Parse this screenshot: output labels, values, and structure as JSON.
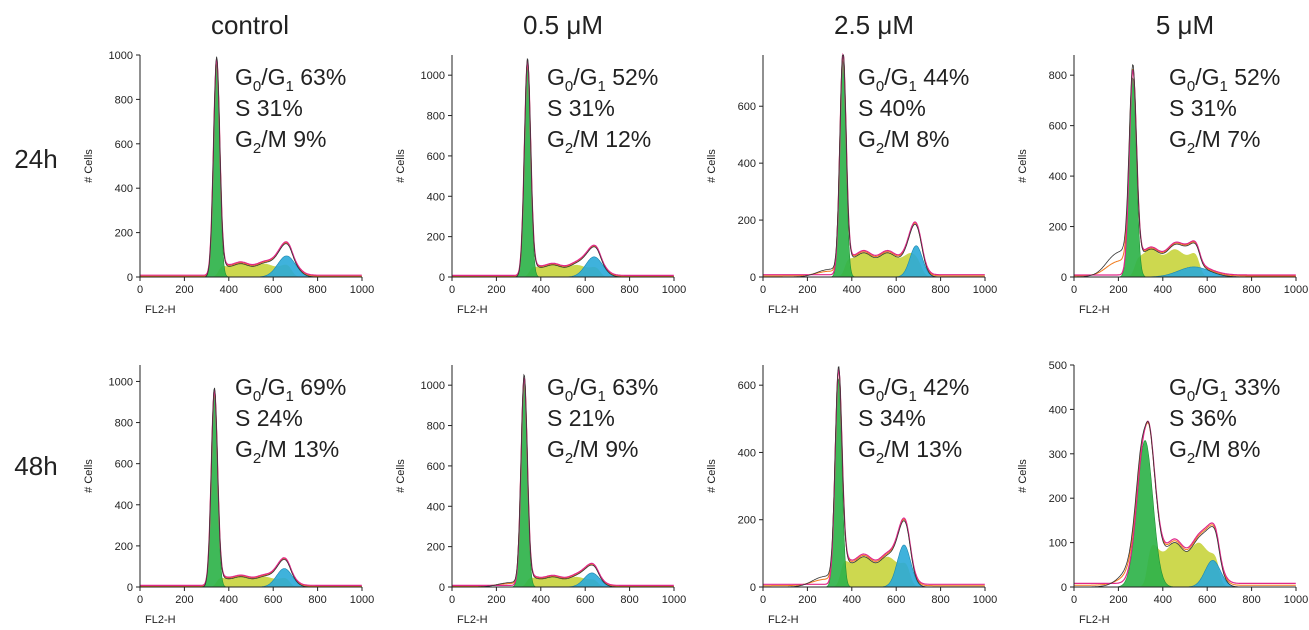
{
  "figure": {
    "column_titles": [
      "control",
      "0.5 μM",
      "2.5 μM",
      "5 μM"
    ],
    "row_titles": [
      "24h",
      "48h"
    ]
  },
  "colors": {
    "g1_fill": "#2fb34a",
    "g1_dark": "#1f8f34",
    "s_fill": "#c8d43c",
    "g2m_fill": "#2aaad8",
    "fit_line": "#e0288a",
    "fit_line2": "#f07a1a",
    "raw_line": "#333333",
    "axis": "#222222"
  },
  "chart_data": [
    {
      "type": "area",
      "row": "24h",
      "column": "control",
      "xlabel": "FL2-H",
      "ylabel": "# Cells",
      "xlim": [
        0,
        1000
      ],
      "xticks": [
        0,
        200,
        400,
        600,
        800,
        1000
      ],
      "ylim": [
        0,
        1000
      ],
      "yticks": [
        0,
        200,
        400,
        600,
        800,
        1000
      ],
      "annotation": {
        "g0g1": "63%",
        "s": "31%",
        "g2m": "9%"
      },
      "peaks": {
        "g1_pos": 345,
        "g1_height": 960,
        "g1_width": 14,
        "g2_pos": 660,
        "g2_height": 95,
        "g2_width": 40,
        "s_level": 60,
        "pre_level": 0
      }
    },
    {
      "type": "area",
      "row": "24h",
      "column": "0.5 μM",
      "xlabel": "FL2-H",
      "ylabel": "# Cells",
      "xlim": [
        0,
        1000
      ],
      "xticks": [
        0,
        200,
        400,
        600,
        800,
        1000
      ],
      "ylim": [
        0,
        1100
      ],
      "yticks": [
        0,
        200,
        400,
        600,
        800,
        1000
      ],
      "annotation": {
        "g0g1": "52%",
        "s": "31%",
        "g2m": "12%"
      },
      "peaks": {
        "g1_pos": 340,
        "g1_height": 1050,
        "g1_width": 14,
        "g2_pos": 640,
        "g2_height": 100,
        "g2_width": 38,
        "s_level": 60,
        "pre_level": 0
      }
    },
    {
      "type": "area",
      "row": "24h",
      "column": "2.5 μM",
      "xlabel": "FL2-H",
      "ylabel": "# Cells",
      "xlim": [
        0,
        1000
      ],
      "xticks": [
        0,
        200,
        400,
        600,
        800,
        1000
      ],
      "ylim": [
        0,
        780
      ],
      "yticks": [
        0,
        200,
        400,
        600
      ],
      "annotation": {
        "g0g1": "44%",
        "s": "40%",
        "g2m": "8%"
      },
      "peaks": {
        "g1_pos": 360,
        "g1_height": 760,
        "g1_width": 14,
        "g2_pos": 690,
        "g2_height": 110,
        "g2_width": 28,
        "s_level": 85,
        "pre_level": 30
      }
    },
    {
      "type": "area",
      "row": "24h",
      "column": "5 μM",
      "xlabel": "FL2-H",
      "ylabel": "# Cells",
      "xlim": [
        0,
        1000
      ],
      "xticks": [
        0,
        200,
        400,
        600,
        800,
        1000
      ],
      "ylim": [
        0,
        880
      ],
      "yticks": [
        0,
        200,
        400,
        600,
        800
      ],
      "annotation": {
        "g0g1": "52%",
        "s": "31%",
        "g2m": "7%"
      },
      "peaks": {
        "g1_pos": 265,
        "g1_height": 790,
        "g1_width": 16,
        "g2_pos": 540,
        "g2_height": 40,
        "g2_width": 70,
        "s_level": 110,
        "pre_level": 110
      }
    },
    {
      "type": "area",
      "row": "48h",
      "column": "control",
      "xlabel": "FL2-H",
      "ylabel": "# Cells",
      "xlim": [
        0,
        1000
      ],
      "xticks": [
        0,
        200,
        400,
        600,
        800,
        1000
      ],
      "ylim": [
        0,
        1080
      ],
      "yticks": [
        0,
        200,
        400,
        600,
        800,
        1000
      ],
      "annotation": {
        "g0g1": "69%",
        "s": "24%",
        "g2m": "13%"
      },
      "peaks": {
        "g1_pos": 335,
        "g1_height": 940,
        "g1_width": 14,
        "g2_pos": 650,
        "g2_height": 90,
        "g2_width": 35,
        "s_level": 50,
        "pre_level": 0
      }
    },
    {
      "type": "area",
      "row": "48h",
      "column": "0.5 μM",
      "xlabel": "FL2-H",
      "ylabel": "# Cells",
      "xlim": [
        0,
        1000
      ],
      "xticks": [
        0,
        200,
        400,
        600,
        800,
        1000
      ],
      "ylim": [
        0,
        1100
      ],
      "yticks": [
        0,
        200,
        400,
        600,
        800,
        1000
      ],
      "annotation": {
        "g0g1": "63%",
        "s": "21%",
        "g2m": "9%"
      },
      "peaks": {
        "g1_pos": 325,
        "g1_height": 1020,
        "g1_width": 14,
        "g2_pos": 630,
        "g2_height": 70,
        "g2_width": 35,
        "s_level": 50,
        "pre_level": 25
      }
    },
    {
      "type": "area",
      "row": "48h",
      "column": "2.5 μM",
      "xlabel": "FL2-H",
      "ylabel": "# Cells",
      "xlim": [
        0,
        1000
      ],
      "xticks": [
        0,
        200,
        400,
        600,
        800,
        1000
      ],
      "ylim": [
        0,
        660
      ],
      "yticks": [
        0,
        200,
        400,
        600
      ],
      "annotation": {
        "g0g1": "42%",
        "s": "34%",
        "g2m": "13%"
      },
      "peaks": {
        "g1_pos": 340,
        "g1_height": 620,
        "g1_width": 15,
        "g2_pos": 635,
        "g2_height": 125,
        "g2_width": 30,
        "s_level": 90,
        "pre_level": 35
      }
    },
    {
      "type": "area",
      "row": "48h",
      "column": "5 μM",
      "xlabel": "FL2-H",
      "ylabel": "# Cells",
      "xlim": [
        0,
        1000
      ],
      "xticks": [
        0,
        200,
        400,
        600,
        800,
        1000
      ],
      "ylim": [
        0,
        500
      ],
      "yticks": [
        0,
        100,
        200,
        300,
        400,
        500
      ],
      "annotation": {
        "g0g1": "33%",
        "s": "36%",
        "g2m": "8%"
      },
      "peaks": {
        "g1_pos": 320,
        "g1_height": 330,
        "g1_width": 35,
        "g2_pos": 625,
        "g2_height": 60,
        "g2_width": 35,
        "s_level": 100,
        "pre_level": 40
      }
    }
  ]
}
